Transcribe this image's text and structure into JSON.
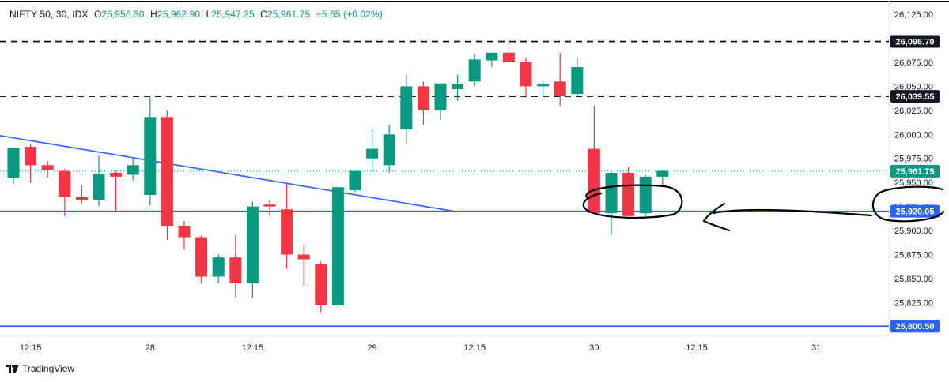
{
  "header": {
    "symbol": "NIFTY 50, 30, IDX",
    "o_label": "O",
    "o": "25,956.30",
    "h_label": "H",
    "h": "25,962.90",
    "l_label": "L",
    "l": "25,947.25",
    "c_label": "C",
    "c": "25,961.75",
    "change": "+5.65 (+0.02%)"
  },
  "brand": {
    "name": "TradingView"
  },
  "colors": {
    "up": "#089981",
    "down": "#f23645",
    "trend": "#2962ff",
    "text": "#131722",
    "border": "#000000"
  },
  "chart_data": {
    "type": "candlestick",
    "title": "",
    "xlabel": "",
    "ylabel": "",
    "ylim": [
      25790,
      26130
    ],
    "y_ticks": [
      26125,
      26075,
      26050,
      26025,
      26000,
      25975,
      25950,
      25925,
      25900,
      25875,
      25850,
      25825
    ],
    "y_tick_labels": [
      "26,125.00",
      "26,075.00",
      "26,050.00",
      "26,025.00",
      "26,000.00",
      "25,975.00",
      "25,950.00",
      "25,925.00",
      "25,900.00",
      "25,875.00",
      "25,850.00",
      "25,825.00"
    ],
    "x_tick_labels": [
      {
        "index": 1,
        "label": "12:15"
      },
      {
        "index": 8,
        "label": "28"
      },
      {
        "index": 14,
        "label": "12:15"
      },
      {
        "index": 21,
        "label": "29"
      },
      {
        "index": 27,
        "label": "12:15"
      },
      {
        "index": 34,
        "label": "30"
      },
      {
        "index": 40,
        "label": "12:15"
      },
      {
        "index": 47,
        "label": "31"
      }
    ],
    "candles": [
      {
        "o": 25955,
        "h": 25985,
        "l": 25948,
        "c": 25986
      },
      {
        "o": 25987,
        "h": 25990,
        "l": 25950,
        "c": 25968
      },
      {
        "o": 25968,
        "h": 25972,
        "l": 25955,
        "c": 25963
      },
      {
        "o": 25962,
        "h": 25964,
        "l": 25915,
        "c": 25935
      },
      {
        "o": 25935,
        "h": 25947,
        "l": 25928,
        "c": 25932
      },
      {
        "o": 25932,
        "h": 25978,
        "l": 25925,
        "c": 25959
      },
      {
        "o": 25960,
        "h": 25962,
        "l": 25920,
        "c": 25956
      },
      {
        "o": 25958,
        "h": 25975,
        "l": 25952,
        "c": 25968
      },
      {
        "o": 25937,
        "h": 26040,
        "l": 25926,
        "c": 26018
      },
      {
        "o": 26018,
        "h": 26025,
        "l": 25890,
        "c": 25905
      },
      {
        "o": 25905,
        "h": 25910,
        "l": 25880,
        "c": 25893
      },
      {
        "o": 25893,
        "h": 25895,
        "l": 25845,
        "c": 25852
      },
      {
        "o": 25852,
        "h": 25875,
        "l": 25845,
        "c": 25872
      },
      {
        "o": 25872,
        "h": 25895,
        "l": 25830,
        "c": 25845
      },
      {
        "o": 25845,
        "h": 25930,
        "l": 25830,
        "c": 25925
      },
      {
        "o": 25927,
        "h": 25932,
        "l": 25915,
        "c": 25925
      },
      {
        "o": 25922,
        "h": 25950,
        "l": 25860,
        "c": 25875
      },
      {
        "o": 25875,
        "h": 25885,
        "l": 25842,
        "c": 25870
      },
      {
        "o": 25865,
        "h": 25868,
        "l": 25815,
        "c": 25822
      },
      {
        "o": 25822,
        "h": 25945,
        "l": 25818,
        "c": 25945
      },
      {
        "o": 25942,
        "h": 25962,
        "l": 25940,
        "c": 25962
      },
      {
        "o": 25975,
        "h": 26005,
        "l": 25960,
        "c": 25985
      },
      {
        "o": 25968,
        "h": 26010,
        "l": 25960,
        "c": 26000
      },
      {
        "o": 26005,
        "h": 26062,
        "l": 25990,
        "c": 26050
      },
      {
        "o": 26050,
        "h": 26055,
        "l": 26010,
        "c": 26025
      },
      {
        "o": 26025,
        "h": 26052,
        "l": 26015,
        "c": 26053
      },
      {
        "o": 26047,
        "h": 26062,
        "l": 26035,
        "c": 26052
      },
      {
        "o": 26055,
        "h": 26083,
        "l": 26050,
        "c": 26078
      },
      {
        "o": 26077,
        "h": 26085,
        "l": 26070,
        "c": 26085
      },
      {
        "o": 26085,
        "h": 26100,
        "l": 26075,
        "c": 26075
      },
      {
        "o": 26075,
        "h": 26080,
        "l": 26040,
        "c": 26050
      },
      {
        "o": 26050,
        "h": 26055,
        "l": 26040,
        "c": 26052
      },
      {
        "o": 26055,
        "h": 26085,
        "l": 26030,
        "c": 26040
      },
      {
        "o": 26042,
        "h": 26080,
        "l": 26040,
        "c": 26070
      },
      {
        "o": 25985,
        "h": 26030,
        "l": 25918,
        "c": 25918
      },
      {
        "o": 25918,
        "h": 25962,
        "l": 25895,
        "c": 25960
      },
      {
        "o": 25960,
        "h": 25966,
        "l": 25915,
        "c": 25915
      },
      {
        "o": 25918,
        "h": 25958,
        "l": 25915,
        "c": 25956
      },
      {
        "o": 25956,
        "h": 25963,
        "l": 25947,
        "c": 25962
      }
    ],
    "horizontal_levels": [
      {
        "value": 26096.7,
        "label": "26,096.70",
        "style": "dashed",
        "color": "#000000"
      },
      {
        "value": 26039.55,
        "label": "26,039.55",
        "style": "dashed",
        "color": "#000000"
      },
      {
        "value": 25961.75,
        "label": "25,961.75",
        "style": "dotted",
        "color": "#089981"
      },
      {
        "value": 25920.05,
        "label": "25,920.05",
        "style": "solid",
        "color": "#2962ff"
      },
      {
        "value": 25800.5,
        "label": "25,800.50",
        "style": "solid",
        "color": "#2962ff"
      }
    ],
    "trendline": {
      "from_index": -1.2,
      "from_value": 26000,
      "to_index": 25.8,
      "to_value": 25920,
      "color": "#2962ff"
    },
    "annotations": [
      {
        "type": "ellipse-highlight",
        "around_indices": [
          34,
          37
        ],
        "value": 25920
      },
      {
        "type": "hand-drawn-arrow",
        "pointing": "left",
        "value": 25910
      },
      {
        "type": "circle-on-axis",
        "value": 25920.05
      }
    ]
  }
}
